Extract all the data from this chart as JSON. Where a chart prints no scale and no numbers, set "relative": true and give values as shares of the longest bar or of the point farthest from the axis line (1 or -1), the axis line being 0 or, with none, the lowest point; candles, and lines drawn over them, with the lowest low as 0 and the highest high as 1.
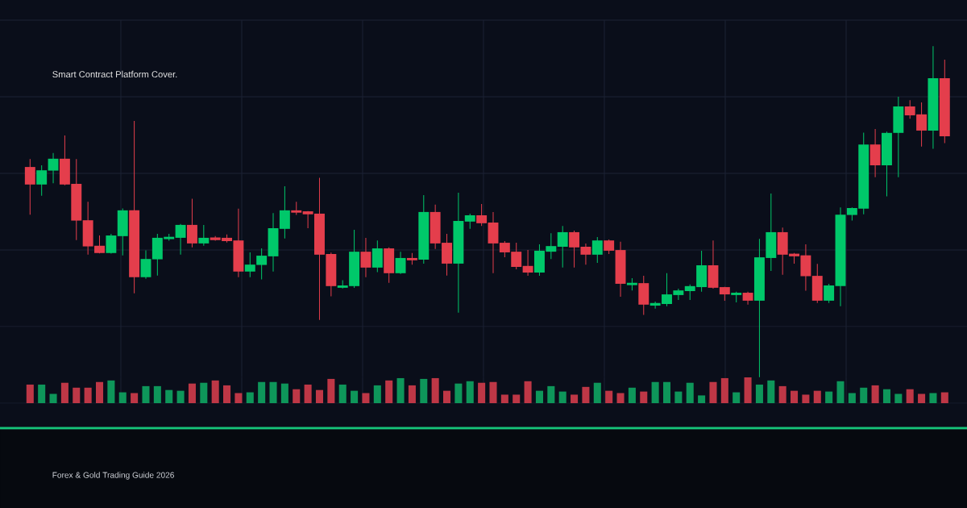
{
  "chart_data": [
    {
      "type": "candlestick",
      "title": "Smart Contract Platform Cover.",
      "annotations": [
        "Forex & Gold Trading Guide 2026"
      ],
      "relative": true,
      "grid": true,
      "categories": [
        null,
        null,
        null,
        null,
        null,
        null,
        null,
        null,
        null,
        null,
        null,
        null,
        null,
        null,
        null,
        null,
        null,
        null,
        null,
        null,
        null,
        null,
        null,
        null,
        null,
        null,
        null,
        null,
        null,
        null,
        null,
        null,
        null,
        null,
        null,
        null,
        null,
        null,
        null,
        null,
        null,
        null,
        null,
        null,
        null,
        null,
        null,
        null,
        null,
        null,
        null,
        null,
        null,
        null,
        null,
        null,
        null,
        null,
        null,
        null,
        null,
        null,
        null,
        null,
        null,
        null,
        null,
        null,
        null,
        null,
        null,
        null,
        null,
        null,
        null,
        null,
        null,
        null,
        null,
        null
      ],
      "ohlc": [
        [
          0.635,
          0.659,
          0.491,
          0.582
        ],
        [
          0.582,
          0.64,
          0.548,
          0.625
        ],
        [
          0.624,
          0.677,
          0.586,
          0.66
        ],
        [
          0.66,
          0.73,
          0.58,
          0.582
        ],
        [
          0.584,
          0.659,
          0.414,
          0.473
        ],
        [
          0.474,
          0.53,
          0.37,
          0.395
        ],
        [
          0.397,
          0.428,
          0.374,
          0.375
        ],
        [
          0.375,
          0.433,
          0.373,
          0.428
        ],
        [
          0.426,
          0.51,
          0.368,
          0.504
        ],
        [
          0.504,
          0.774,
          0.253,
          0.302
        ],
        [
          0.302,
          0.383,
          0.297,
          0.357
        ],
        [
          0.356,
          0.433,
          0.307,
          0.421
        ],
        [
          0.417,
          0.433,
          0.412,
          0.424
        ],
        [
          0.421,
          0.463,
          0.37,
          0.46
        ],
        [
          0.46,
          0.539,
          0.392,
          0.404
        ],
        [
          0.404,
          0.46,
          0.397,
          0.421
        ],
        [
          0.422,
          0.426,
          0.412,
          0.414
        ],
        [
          0.421,
          0.431,
          0.407,
          0.411
        ],
        [
          0.413,
          0.509,
          0.302,
          0.319
        ],
        [
          0.319,
          0.377,
          0.302,
          0.34
        ],
        [
          0.339,
          0.389,
          0.295,
          0.367
        ],
        [
          0.365,
          0.496,
          0.319,
          0.45
        ],
        [
          0.448,
          0.577,
          0.419,
          0.504
        ],
        [
          0.504,
          0.53,
          0.49,
          0.497
        ],
        [
          0.501,
          0.502,
          0.45,
          0.492
        ],
        [
          0.494,
          0.602,
          0.173,
          0.37
        ],
        [
          0.372,
          0.376,
          0.244,
          0.275
        ],
        [
          0.27,
          0.293,
          0.268,
          0.277
        ],
        [
          0.275,
          0.445,
          0.27,
          0.379
        ],
        [
          0.379,
          0.421,
          0.302,
          0.331
        ],
        [
          0.331,
          0.413,
          0.317,
          0.389
        ],
        [
          0.389,
          0.392,
          0.285,
          0.314
        ],
        [
          0.314,
          0.379,
          0.312,
          0.36
        ],
        [
          0.36,
          0.375,
          0.34,
          0.353
        ],
        [
          0.355,
          0.55,
          0.343,
          0.499
        ],
        [
          0.499,
          0.521,
          0.387,
          0.404
        ],
        [
          0.406,
          0.433,
          0.307,
          0.343
        ],
        [
          0.343,
          0.557,
          0.195,
          0.472
        ],
        [
          0.47,
          0.494,
          0.448,
          0.489
        ],
        [
          0.489,
          0.523,
          0.457,
          0.465
        ],
        [
          0.467,
          0.499,
          0.314,
          0.404
        ],
        [
          0.406,
          0.411,
          0.362,
          0.377
        ],
        [
          0.379,
          0.406,
          0.326,
          0.333
        ],
        [
          0.336,
          0.384,
          0.306,
          0.316
        ],
        [
          0.316,
          0.401,
          0.306,
          0.382
        ],
        [
          0.379,
          0.435,
          0.357,
          0.396
        ],
        [
          0.394,
          0.457,
          0.331,
          0.438
        ],
        [
          0.438,
          0.443,
          0.331,
          0.392
        ],
        [
          0.394,
          0.404,
          0.34,
          0.37
        ],
        [
          0.37,
          0.423,
          0.345,
          0.413
        ],
        [
          0.413,
          0.416,
          0.372,
          0.382
        ],
        [
          0.384,
          0.409,
          0.243,
          0.282
        ],
        [
          0.278,
          0.299,
          0.262,
          0.285
        ],
        [
          0.284,
          0.306,
          0.188,
          0.219
        ],
        [
          0.216,
          0.228,
          0.207,
          0.224
        ],
        [
          0.221,
          0.314,
          0.214,
          0.25
        ],
        [
          0.248,
          0.267,
          0.233,
          0.262
        ],
        [
          0.26,
          0.28,
          0.233,
          0.275
        ],
        [
          0.272,
          0.382,
          0.258,
          0.338
        ],
        [
          0.338,
          0.413,
          0.267,
          0.27
        ],
        [
          0.272,
          0.273,
          0.231,
          0.25
        ],
        [
          0.248,
          0.258,
          0.226,
          0.255
        ],
        [
          0.255,
          0.258,
          0.219,
          0.231
        ],
        [
          0.231,
          0.418,
          0,
          0.362
        ],
        [
          0.36,
          0.555,
          0.321,
          0.438
        ],
        [
          0.438,
          0.452,
          0.309,
          0.37
        ],
        [
          0.373,
          0.375,
          0.343,
          0.365
        ],
        [
          0.368,
          0.401,
          0.261,
          0.305
        ],
        [
          0.306,
          0.342,
          0.224,
          0.231
        ],
        [
          0.231,
          0.282,
          0.224,
          0.277
        ],
        [
          0.275,
          0.513,
          0.214,
          0.491
        ],
        [
          0.49,
          0.513,
          0.473,
          0.511
        ],
        [
          0.509,
          0.739,
          0.492,
          0.703
        ],
        [
          0.703,
          0.75,
          0.604,
          0.64
        ],
        [
          0.64,
          0.742,
          0.546,
          0.738
        ],
        [
          0.738,
          0.847,
          0.604,
          0.818
        ],
        [
          0.818,
          0.837,
          0.781,
          0.791
        ],
        [
          0.794,
          0.83,
          0.697,
          0.745
        ],
        [
          0.745,
          1,
          0.69,
          0.903
        ],
        [
          0.903,
          0.959,
          0.707,
          0.728
        ]
      ],
      "colors": [
        "#e43e4c",
        "#00c86a",
        "#00c86a",
        "#e43e4c",
        "#e43e4c",
        "#e43e4c",
        "#e43e4c",
        "#00c86a",
        "#00c86a",
        "#e43e4c",
        "#00c86a",
        "#00c86a",
        "#00c86a",
        "#00c86a",
        "#e43e4c",
        "#00c86a",
        "#e43e4c",
        "#e43e4c",
        "#e43e4c",
        "#00c86a",
        "#00c86a",
        "#00c86a",
        "#00c86a",
        "#e43e4c",
        "#e43e4c",
        "#e43e4c",
        "#e43e4c",
        "#00c86a",
        "#00c86a",
        "#e43e4c",
        "#00c86a",
        "#e43e4c",
        "#00c86a",
        "#e43e4c",
        "#00c86a",
        "#e43e4c",
        "#e43e4c",
        "#00c86a",
        "#00c86a",
        "#e43e4c",
        "#e43e4c",
        "#e43e4c",
        "#e43e4c",
        "#e43e4c",
        "#00c86a",
        "#00c86a",
        "#00c86a",
        "#e43e4c",
        "#e43e4c",
        "#00c86a",
        "#e43e4c",
        "#e43e4c",
        "#00c86a",
        "#e43e4c",
        "#00c86a",
        "#00c86a",
        "#00c86a",
        "#00c86a",
        "#00c86a",
        "#e43e4c",
        "#e43e4c",
        "#00c86a",
        "#e43e4c",
        "#00c86a",
        "#00c86a",
        "#e43e4c",
        "#e43e4c",
        "#e43e4c",
        "#e43e4c",
        "#00c86a",
        "#00c86a",
        "#00c86a",
        "#00c86a",
        "#e43e4c",
        "#00c86a",
        "#00c86a",
        "#e43e4c",
        "#e43e4c",
        "#00c86a",
        "#e43e4c"
      ]
    },
    {
      "type": "bar",
      "relative": true,
      "grid": "x",
      "categories": [
        null,
        null,
        null,
        null,
        null,
        null,
        null,
        null,
        null,
        null,
        null,
        null,
        null,
        null,
        null,
        null,
        null,
        null,
        null,
        null,
        null,
        null,
        null,
        null,
        null,
        null,
        null,
        null,
        null,
        null,
        null,
        null,
        null,
        null,
        null,
        null,
        null,
        null,
        null,
        null,
        null,
        null,
        null,
        null,
        null,
        null,
        null,
        null,
        null,
        null,
        null,
        null,
        null,
        null,
        null,
        null,
        null,
        null,
        null,
        null,
        null,
        null,
        null,
        null,
        null,
        null,
        null,
        null,
        null,
        null,
        null,
        null,
        null,
        null,
        null,
        null,
        null,
        null,
        null,
        null
      ],
      "values": [
        0.72,
        0.72,
        0.36,
        0.79,
        0.6,
        0.6,
        0.82,
        0.88,
        0.42,
        0.39,
        0.66,
        0.66,
        0.51,
        0.48,
        0.76,
        0.79,
        0.88,
        0.69,
        0.39,
        0.42,
        0.82,
        0.82,
        0.76,
        0.54,
        0.72,
        0.51,
        0.94,
        0.72,
        0.48,
        0.39,
        0.69,
        0.88,
        0.97,
        0.69,
        0.94,
        0.97,
        0.48,
        0.76,
        0.85,
        0.79,
        0.82,
        0.33,
        0.33,
        0.85,
        0.48,
        0.66,
        0.45,
        0.33,
        0.63,
        0.79,
        0.48,
        0.39,
        0.6,
        0.45,
        0.82,
        0.82,
        0.45,
        0.79,
        0.3,
        0.82,
        0.97,
        0.42,
        1,
        0.72,
        0.88,
        0.66,
        0.48,
        0.33,
        0.48,
        0.45,
        0.85,
        0.39,
        0.6,
        0.69,
        0.54,
        0.36,
        0.54,
        0.36,
        0.39,
        0.42
      ],
      "colors": [
        "#be3746",
        "#0e965a",
        "#0e965a",
        "#be3746",
        "#be3746",
        "#be3746",
        "#be3746",
        "#0e965a",
        "#0e965a",
        "#be3746",
        "#0e965a",
        "#0e965a",
        "#0e965a",
        "#0e965a",
        "#be3746",
        "#0e965a",
        "#be3746",
        "#be3746",
        "#be3746",
        "#0e965a",
        "#0e965a",
        "#0e965a",
        "#0e965a",
        "#be3746",
        "#be3746",
        "#be3746",
        "#be3746",
        "#0e965a",
        "#0e965a",
        "#be3746",
        "#0e965a",
        "#be3746",
        "#0e965a",
        "#be3746",
        "#0e965a",
        "#be3746",
        "#be3746",
        "#0e965a",
        "#0e965a",
        "#be3746",
        "#be3746",
        "#be3746",
        "#be3746",
        "#be3746",
        "#0e965a",
        "#0e965a",
        "#0e965a",
        "#be3746",
        "#be3746",
        "#0e965a",
        "#be3746",
        "#be3746",
        "#0e965a",
        "#be3746",
        "#0e965a",
        "#0e965a",
        "#0e965a",
        "#0e965a",
        "#0e965a",
        "#be3746",
        "#be3746",
        "#0e965a",
        "#be3746",
        "#0e965a",
        "#0e965a",
        "#be3746",
        "#be3746",
        "#be3746",
        "#be3746",
        "#0e965a",
        "#0e965a",
        "#0e965a",
        "#0e965a",
        "#be3746",
        "#0e965a",
        "#0e965a",
        "#be3746",
        "#be3746",
        "#0e965a",
        "#be3746"
      ]
    }
  ]
}
